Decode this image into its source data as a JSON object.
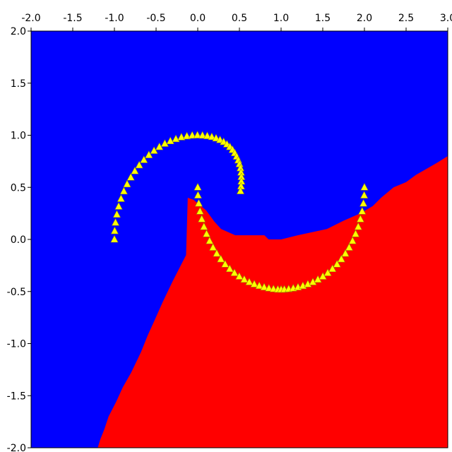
{
  "chart_data": {
    "type": "scatter",
    "title": "",
    "xlabel": "",
    "ylabel": "",
    "xlim": [
      -2.0,
      3.0
    ],
    "ylim": [
      -2.0,
      2.0
    ],
    "x_ticks": [
      "-2.0",
      "-1.5",
      "-1.0",
      "-0.5",
      "0.0",
      "0.5",
      "1.0",
      "1.5",
      "2.0",
      "2.5",
      "3.0"
    ],
    "y_ticks": [
      "2.0",
      "1.5",
      "1.0",
      "0.5",
      "0.0",
      "-0.5",
      "-1.0",
      "-1.5",
      "-2.0"
    ],
    "grid": false,
    "legend": "none",
    "colors": {
      "region_upper": "#0000ff",
      "region_lower": "#ff0000",
      "marker_fill": "#ffff00",
      "marker_edge": "#999900"
    },
    "marker": "triangle",
    "boundary": [
      [
        -1.2,
        -2.0
      ],
      [
        -1.17,
        -1.92
      ],
      [
        -1.12,
        -1.82
      ],
      [
        -1.07,
        -1.7
      ],
      [
        -0.98,
        -1.56
      ],
      [
        -0.9,
        -1.42
      ],
      [
        -0.8,
        -1.28
      ],
      [
        -0.68,
        -1.08
      ],
      [
        -0.6,
        -0.92
      ],
      [
        -0.52,
        -0.78
      ],
      [
        -0.42,
        -0.6
      ],
      [
        -0.3,
        -0.4
      ],
      [
        -0.14,
        -0.15
      ],
      [
        -0.12,
        0.4
      ],
      [
        -0.05,
        0.38
      ],
      [
        0.1,
        0.28
      ],
      [
        0.2,
        0.17
      ],
      [
        0.28,
        0.1
      ],
      [
        0.45,
        0.04
      ],
      [
        0.8,
        0.04
      ],
      [
        0.85,
        0.0
      ],
      [
        1.0,
        0.0
      ],
      [
        1.2,
        0.04
      ],
      [
        1.55,
        0.1
      ],
      [
        1.75,
        0.18
      ],
      [
        1.95,
        0.25
      ],
      [
        2.1,
        0.32
      ],
      [
        2.2,
        0.4
      ],
      [
        2.35,
        0.5
      ],
      [
        2.5,
        0.55
      ],
      [
        2.62,
        0.62
      ],
      [
        2.75,
        0.68
      ],
      [
        2.88,
        0.74
      ],
      [
        3.0,
        0.8
      ]
    ],
    "series": [
      {
        "x": [
          -1.0,
          -0.9967,
          -0.9869,
          -0.9709,
          -0.9488,
          -0.9206,
          -0.8868,
          -0.8477,
          -0.8036,
          -0.7549,
          -0.7022,
          -0.6459,
          -0.5864,
          -0.5245,
          -0.4605,
          -0.3951,
          -0.3289,
          -0.2624,
          -0.1961,
          -0.1305,
          -0.0662,
          -0.0037,
          0.0566,
          0.1142,
          0.1687,
          0.2199,
          0.2674,
          0.311,
          0.3505,
          0.3859,
          0.4171,
          0.4441,
          0.4671,
          0.486,
          0.5009,
          0.5121,
          0.5195,
          0.5233,
          0.5234,
          0.5198,
          0.5128
        ],
        "y": [
          0.0,
          0.081,
          0.161,
          0.239,
          0.316,
          0.39,
          0.462,
          0.53,
          0.595,
          0.656,
          0.712,
          0.763,
          0.81,
          0.851,
          0.888,
          0.919,
          0.944,
          0.964,
          0.981,
          0.991,
          0.998,
          1.0,
          0.998,
          0.993,
          0.984,
          0.971,
          0.955,
          0.936,
          0.913,
          0.888,
          0.86,
          0.829,
          0.796,
          0.76,
          0.723,
          0.684,
          0.642,
          0.6,
          0.556,
          0.51,
          0.464
        ]
      },
      {
        "x": [
          0.0,
          0.003,
          0.012,
          0.0271,
          0.0479,
          0.0743,
          0.1058,
          0.1423,
          0.1832,
          0.2282,
          0.277,
          0.3289,
          0.3835,
          0.4402,
          0.4987,
          0.5583,
          0.6184,
          0.6786,
          0.7383,
          0.7969,
          0.8539,
          0.9088,
          0.9611,
          1.0,
          1.0389,
          1.0912,
          1.1461,
          1.2031,
          1.2617,
          1.3214,
          1.3816,
          1.4417,
          1.5013,
          1.5598,
          1.6165,
          1.6711,
          1.723,
          1.7718,
          1.8168,
          1.8577,
          1.8942,
          1.9257,
          1.9521,
          1.9729,
          1.988,
          1.997,
          2.0
        ],
        "y": [
          0.5,
          0.423,
          0.345,
          0.269,
          0.194,
          0.121,
          0.052,
          -0.015,
          -0.078,
          -0.136,
          -0.19,
          -0.239,
          -0.283,
          -0.322,
          -0.356,
          -0.385,
          -0.41,
          -0.43,
          -0.446,
          -0.459,
          -0.469,
          -0.476,
          -0.48,
          -0.481,
          -0.48,
          -0.476,
          -0.469,
          -0.459,
          -0.446,
          -0.43,
          -0.41,
          -0.385,
          -0.356,
          -0.322,
          -0.283,
          -0.239,
          -0.19,
          -0.136,
          -0.078,
          -0.015,
          0.052,
          0.121,
          0.194,
          0.269,
          0.345,
          0.423,
          0.5
        ]
      }
    ]
  }
}
